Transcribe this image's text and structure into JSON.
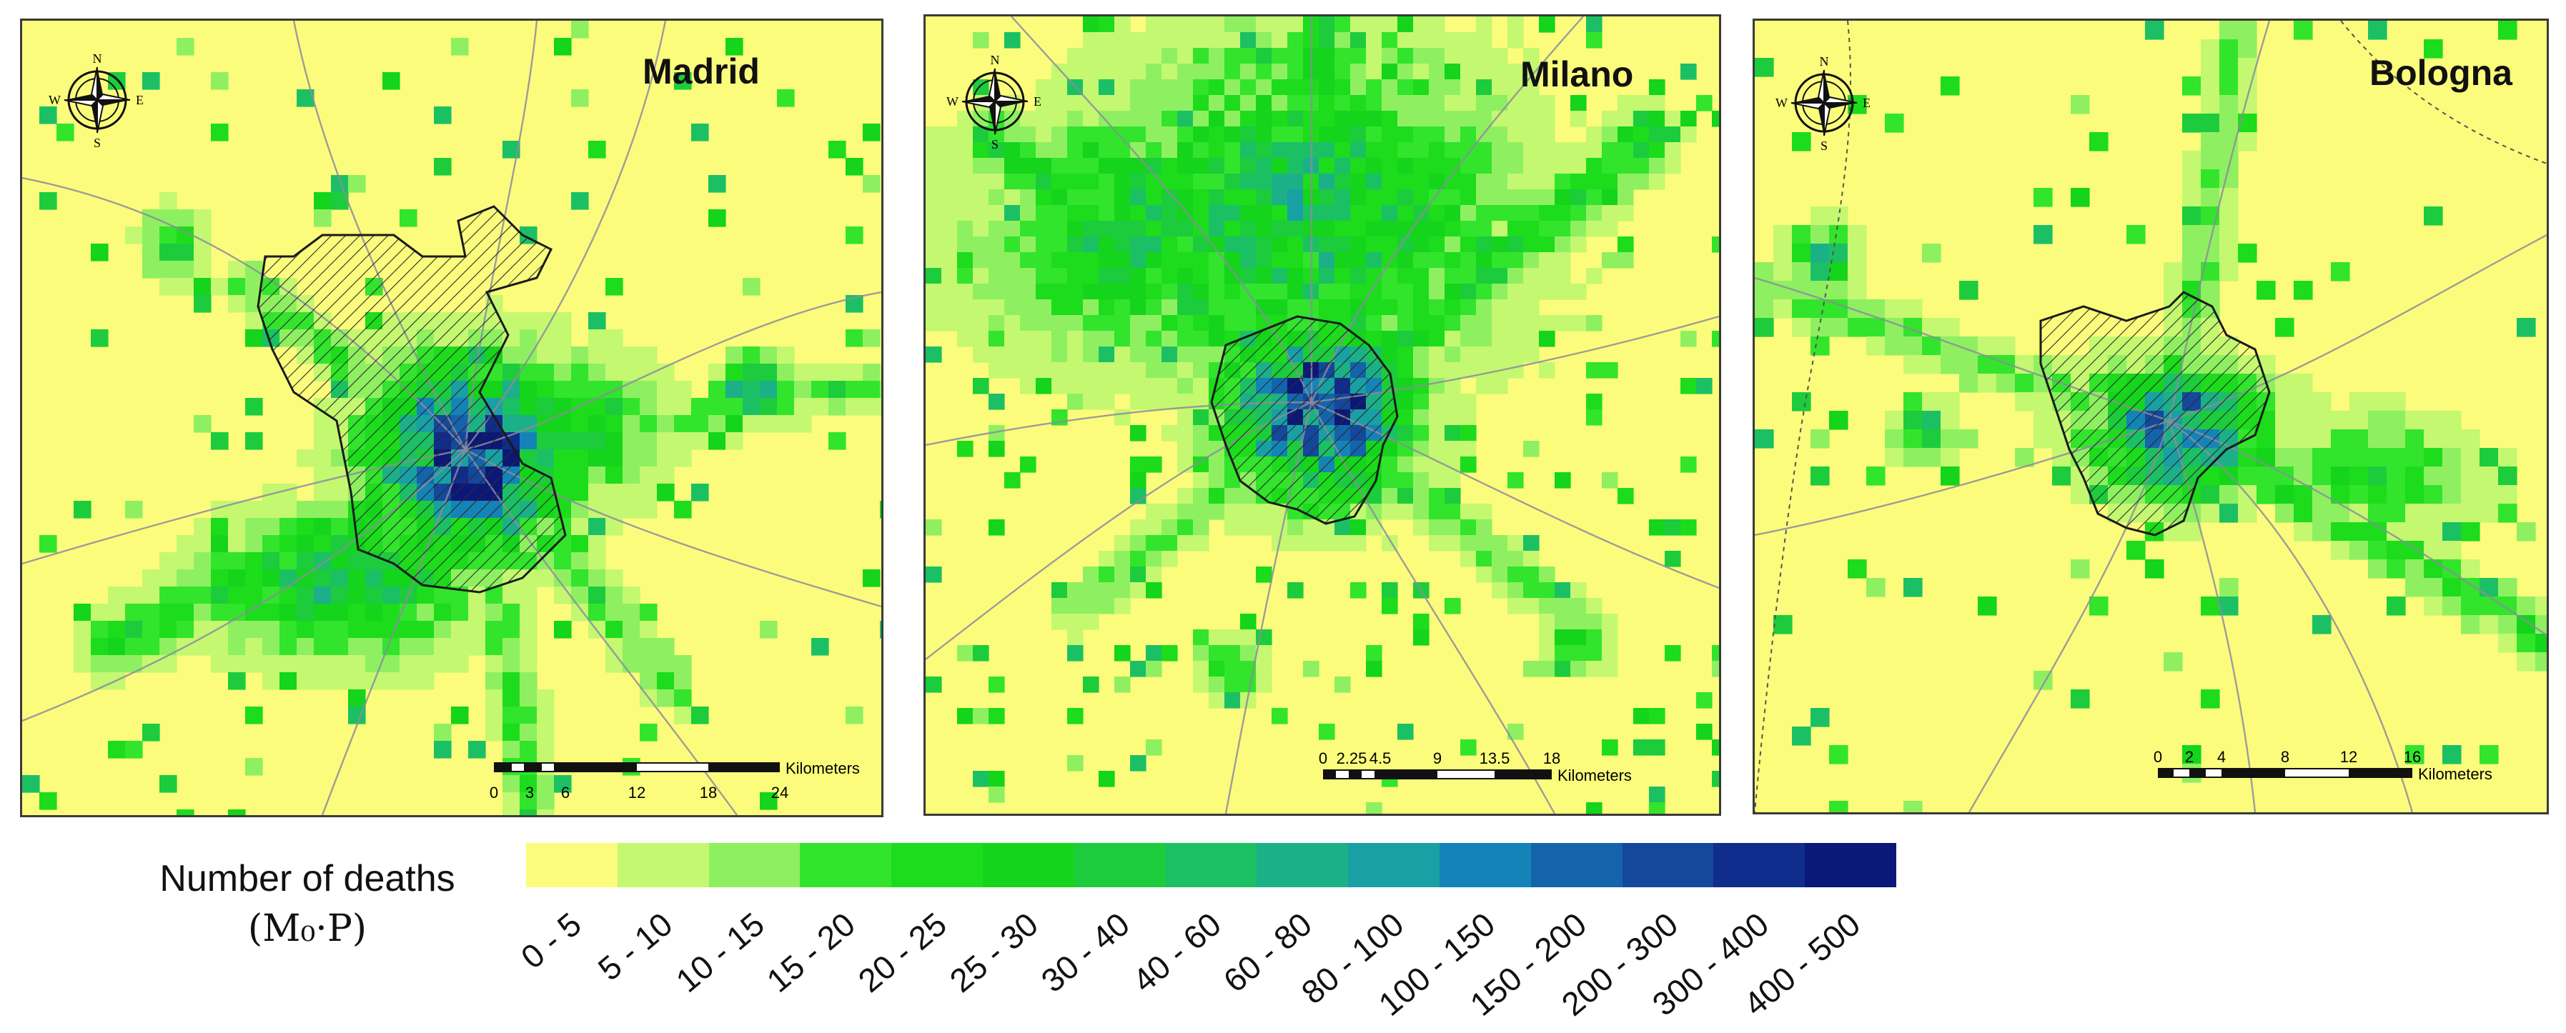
{
  "panels": [
    {
      "id": "madrid",
      "title": "Madrid",
      "scale_ticks": [
        "0",
        "3",
        "6",
        "12",
        "18",
        "24"
      ],
      "scale_unit": "Kilometers",
      "compass": {
        "n": "N",
        "s": "S",
        "e": "E",
        "w": "W"
      },
      "has_city_boundary_hatch": true
    },
    {
      "id": "milano",
      "title": "Milano",
      "scale_ticks": [
        "0",
        "2.25",
        "4.5",
        "9",
        "13.5",
        "18"
      ],
      "scale_unit": "Kilometers",
      "compass": {
        "n": "N",
        "s": "S",
        "e": "E",
        "w": "W"
      },
      "has_city_boundary_hatch": true
    },
    {
      "id": "bologna",
      "title": "Bologna",
      "scale_ticks": [
        "0",
        "2",
        "4",
        "8",
        "12",
        "16"
      ],
      "scale_unit": "Kilometers",
      "compass": {
        "n": "N",
        "s": "S",
        "e": "E",
        "w": "W"
      },
      "has_city_boundary_hatch": true
    }
  ],
  "legend": {
    "title": "Number of deaths",
    "subtitle": "(M₀·P)",
    "classes": [
      {
        "label": "0 - 5",
        "color": "#fcfc7c"
      },
      {
        "label": "5 - 10",
        "color": "#c4f870"
      },
      {
        "label": "10 - 15",
        "color": "#8ef060"
      },
      {
        "label": "15 - 20",
        "color": "#32e42c"
      },
      {
        "label": "20 - 25",
        "color": "#1cdc1c"
      },
      {
        "label": "25 - 30",
        "color": "#14d41c"
      },
      {
        "label": "30 - 40",
        "color": "#1ccc3c"
      },
      {
        "label": "40 - 60",
        "color": "#1cc064"
      },
      {
        "label": "60 - 80",
        "color": "#1cb088"
      },
      {
        "label": "80 - 100",
        "color": "#18a0a4"
      },
      {
        "label": "100 - 150",
        "color": "#1484b8"
      },
      {
        "label": "150 - 200",
        "color": "#1464ac"
      },
      {
        "label": "200 - 300",
        "color": "#14489c"
      },
      {
        "label": "300 - 400",
        "color": "#102c8c"
      },
      {
        "label": "400 - 500",
        "color": "#0c1878"
      }
    ]
  },
  "colors": {
    "background": "#fcfc7c",
    "roads": "#8c8c9c",
    "boundary": "#1a1a1a",
    "frame": "#3a3a3a"
  }
}
